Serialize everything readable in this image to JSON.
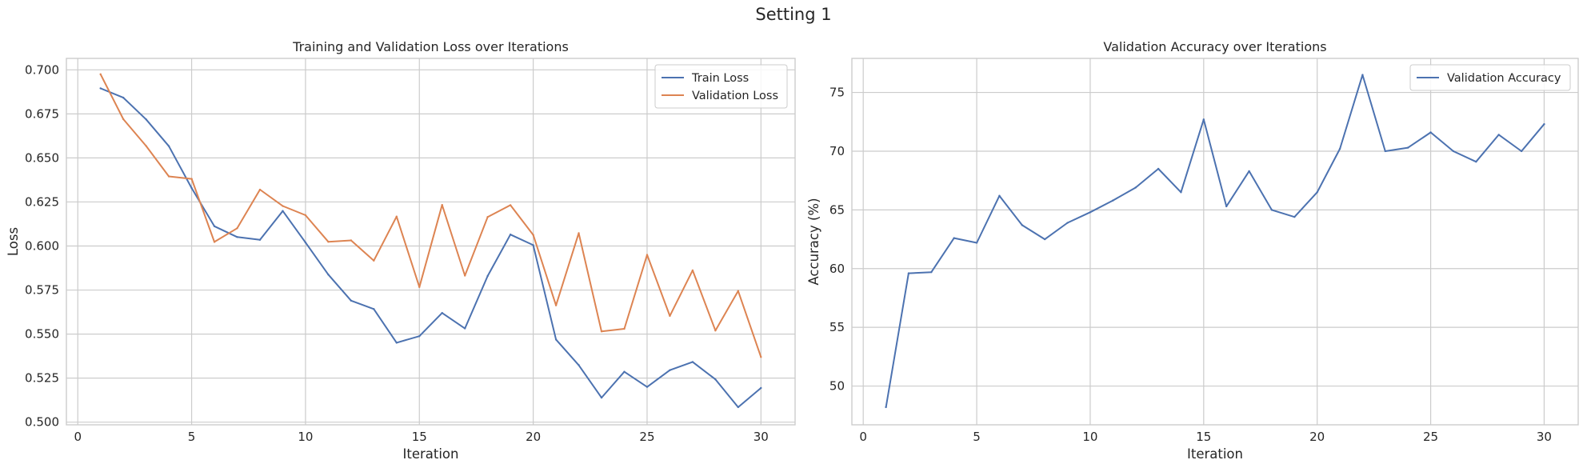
{
  "figure_title": "Setting 1",
  "chart_data": [
    {
      "type": "line",
      "title": "Training and Validation Loss over Iterations",
      "xlabel": "Iteration",
      "ylabel": "Loss",
      "xlim": [
        -0.5,
        31.5
      ],
      "ylim": [
        0.4985,
        0.7065
      ],
      "xticks": [
        0,
        5,
        10,
        15,
        20,
        25,
        30
      ],
      "yticks": [
        0.5,
        0.525,
        0.55,
        0.575,
        0.6,
        0.625,
        0.65,
        0.675,
        0.7
      ],
      "ytick_labels": [
        "0.500",
        "0.525",
        "0.550",
        "0.575",
        "0.600",
        "0.625",
        "0.650",
        "0.675",
        "0.700"
      ],
      "grid": true,
      "legend_position": "upper right",
      "x": [
        1,
        2,
        3,
        4,
        5,
        6,
        7,
        8,
        9,
        10,
        11,
        12,
        13,
        14,
        15,
        16,
        17,
        18,
        19,
        20,
        21,
        22,
        23,
        24,
        25,
        26,
        27,
        28,
        29,
        30
      ],
      "series": [
        {
          "name": "Train Loss",
          "color": "#4c72b0",
          "values": [
            0.6895,
            0.6842,
            0.6719,
            0.6567,
            0.6329,
            0.6112,
            0.6051,
            0.6035,
            0.6199,
            0.602,
            0.5838,
            0.569,
            0.5642,
            0.5451,
            0.5488,
            0.562,
            0.5532,
            0.583,
            0.6065,
            0.6005,
            0.5469,
            0.5324,
            0.5139,
            0.5286,
            0.52,
            0.5295,
            0.5342,
            0.5243,
            0.5085,
            0.5194
          ]
        },
        {
          "name": "Validation Loss",
          "color": "#dd8452",
          "values": [
            0.6975,
            0.672,
            0.6568,
            0.6395,
            0.6381,
            0.6023,
            0.6101,
            0.632,
            0.6227,
            0.6175,
            0.6024,
            0.6032,
            0.5917,
            0.6167,
            0.5767,
            0.6233,
            0.5832,
            0.6165,
            0.6232,
            0.6063,
            0.5663,
            0.6073,
            0.5515,
            0.553,
            0.595,
            0.5603,
            0.5862,
            0.552,
            0.5745,
            0.537
          ]
        }
      ]
    },
    {
      "type": "line",
      "title": "Validation Accuracy over Iterations",
      "xlabel": "Iteration",
      "ylabel": "Accuracy (%)",
      "xlim": [
        -0.5,
        31.5
      ],
      "ylim": [
        46.7,
        77.9
      ],
      "xticks": [
        0,
        5,
        10,
        15,
        20,
        25,
        30
      ],
      "yticks": [
        50,
        55,
        60,
        65,
        70,
        75
      ],
      "ytick_labels": [
        "50",
        "55",
        "60",
        "65",
        "70",
        "75"
      ],
      "grid": true,
      "legend_position": "upper right",
      "x": [
        1,
        2,
        3,
        4,
        5,
        6,
        7,
        8,
        9,
        10,
        11,
        12,
        13,
        14,
        15,
        16,
        17,
        18,
        19,
        20,
        21,
        22,
        23,
        24,
        25,
        26,
        27,
        28,
        29,
        30
      ],
      "series": [
        {
          "name": "Validation Accuracy",
          "color": "#4c72b0",
          "values": [
            48.2,
            59.6,
            59.7,
            62.6,
            62.2,
            66.2,
            63.7,
            62.5,
            63.9,
            64.8,
            65.8,
            66.9,
            68.5,
            66.5,
            72.7,
            65.3,
            68.3,
            65.0,
            64.4,
            66.5,
            70.2,
            76.5,
            70.0,
            70.3,
            71.6,
            70.0,
            69.1,
            71.4,
            70.0,
            72.3
          ]
        }
      ]
    }
  ]
}
